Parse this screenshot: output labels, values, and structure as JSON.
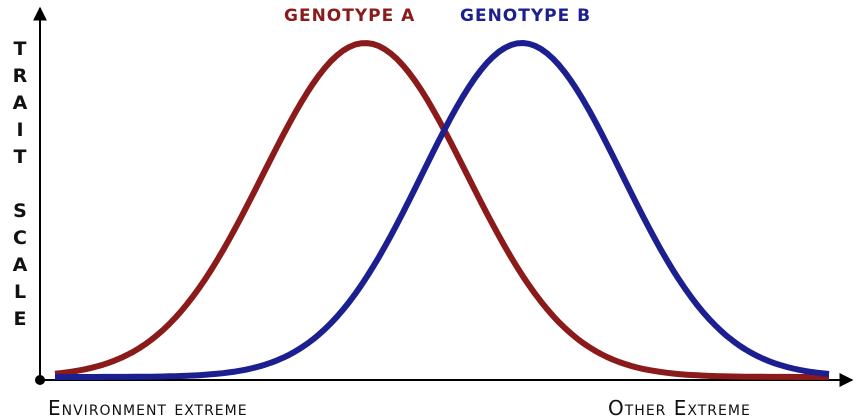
{
  "labels": {
    "genotype_a": "GENOTYPE A",
    "genotype_b": "GENOTYPE B",
    "y_axis": "TRAIT SCALE",
    "x_left": "Environment extreme",
    "x_right": "Other Extreme"
  }
}
